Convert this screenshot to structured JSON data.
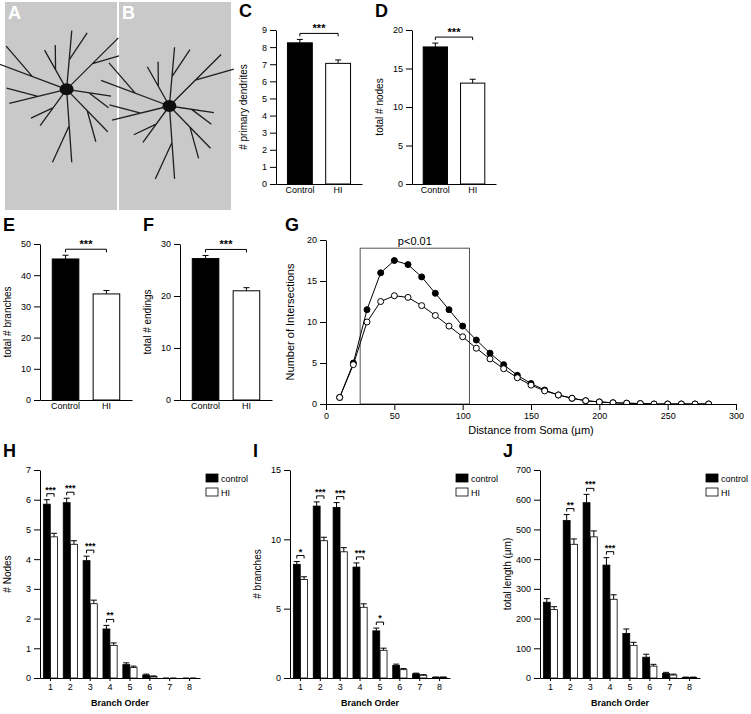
{
  "chart_data": [
    {
      "type": "image",
      "panel_label": "A"
    },
    {
      "type": "image",
      "panel_label": "B"
    },
    {
      "type": "bar",
      "panel_label": "C",
      "categories": [
        "Control",
        "HI"
      ],
      "values": [
        8.25,
        7.05
      ],
      "errors": [
        0.2,
        0.2
      ],
      "colors": [
        "#000000",
        "#ffffff"
      ],
      "ylabel": "# primary dendrites",
      "ylim": [
        0,
        9
      ],
      "yticks": [
        0,
        1,
        2,
        3,
        4,
        5,
        6,
        7,
        8,
        9
      ],
      "significance": "***"
    },
    {
      "type": "bar",
      "panel_label": "D",
      "categories": [
        "Control",
        "HI"
      ],
      "values": [
        17.8,
        13.1
      ],
      "errors": [
        0.5,
        0.5
      ],
      "colors": [
        "#000000",
        "#ffffff"
      ],
      "ylabel": "total # nodes",
      "ylim": [
        0,
        20
      ],
      "yticks": [
        0,
        5,
        10,
        15,
        20
      ],
      "significance": "***"
    },
    {
      "type": "bar",
      "panel_label": "E",
      "categories": [
        "Control",
        "HI"
      ],
      "values": [
        45.2,
        34.0
      ],
      "errors": [
        1.2,
        1.1
      ],
      "colors": [
        "#000000",
        "#ffffff"
      ],
      "ylabel": "total # branches",
      "ylim": [
        0,
        50
      ],
      "yticks": [
        0,
        10,
        20,
        30,
        40,
        50
      ],
      "significance": "***"
    },
    {
      "type": "bar",
      "panel_label": "F",
      "categories": [
        "Control",
        "HI"
      ],
      "values": [
        27.2,
        21.0
      ],
      "errors": [
        0.6,
        0.6
      ],
      "colors": [
        "#000000",
        "#ffffff"
      ],
      "ylabel": "total # endings",
      "ylim": [
        0,
        30
      ],
      "yticks": [
        0,
        10,
        20,
        30
      ],
      "significance": "***"
    },
    {
      "type": "line",
      "panel_label": "G",
      "xlabel": "Distance from Soma (µm)",
      "ylabel": "Number of Intersections",
      "x": [
        10,
        20,
        30,
        40,
        50,
        60,
        70,
        80,
        90,
        100,
        110,
        120,
        130,
        140,
        150,
        160,
        170,
        180,
        190,
        200,
        210,
        220,
        230,
        240,
        250,
        260,
        270,
        280
      ],
      "series": [
        {
          "color": "#000000",
          "marker": "circle",
          "values": [
            0.8,
            5,
            11.5,
            16,
            17.5,
            17,
            15.5,
            13.5,
            11.5,
            9.5,
            7.8,
            6.2,
            4.8,
            3.5,
            2.5,
            1.7,
            1.1,
            0.7,
            0.4,
            0.25,
            0.15,
            0.1,
            0.05,
            0,
            0,
            0,
            0,
            0
          ]
        },
        {
          "color": "#000000",
          "marker": "open-circle",
          "values": [
            0.8,
            4.8,
            10,
            12.5,
            13.2,
            13,
            12,
            10.8,
            9.5,
            8.2,
            6.8,
            5.5,
            4.3,
            3.2,
            2.3,
            1.6,
            1.1,
            0.7,
            0.4,
            0.25,
            0.15,
            0.1,
            0.05,
            0,
            0,
            0,
            0,
            0
          ]
        }
      ],
      "xlim": [
        0,
        300
      ],
      "xticks": [
        0,
        50,
        100,
        150,
        200,
        250,
        300
      ],
      "ylim": [
        0,
        20
      ],
      "yticks": [
        0,
        5,
        10,
        15,
        20
      ],
      "annotation": {
        "text": "p<0.01",
        "x_range": [
          25,
          105
        ],
        "y_range": [
          0,
          19
        ]
      }
    },
    {
      "type": "bar",
      "panel_label": "H",
      "categories": [
        "1",
        "2",
        "3",
        "4",
        "5",
        "6",
        "7",
        "8"
      ],
      "xlabel": "Branch Order",
      "ylabel": "# Nodes",
      "series": [
        {
          "name": "control",
          "color": "#000000",
          "values": [
            5.85,
            5.9,
            3.95,
            1.65,
            0.45,
            0.1,
            0,
            0
          ],
          "errors": [
            0.15,
            0.15,
            0.15,
            0.12,
            0.06,
            0.03,
            0,
            0
          ]
        },
        {
          "name": "HI",
          "color": "#ffffff",
          "values": [
            4.75,
            4.5,
            2.5,
            1.1,
            0.35,
            0.05,
            0,
            0
          ],
          "errors": [
            0.12,
            0.12,
            0.12,
            0.08,
            0.05,
            0.02,
            0,
            0
          ]
        }
      ],
      "ylim": [
        0,
        7
      ],
      "yticks": [
        0,
        1,
        2,
        3,
        4,
        5,
        6,
        7
      ],
      "legend": "right",
      "significance": [
        "***",
        "***",
        "***",
        "**",
        null,
        null,
        null,
        null
      ]
    },
    {
      "type": "bar",
      "panel_label": "I",
      "categories": [
        "1",
        "2",
        "3",
        "4",
        "5",
        "6",
        "7",
        "8"
      ],
      "xlabel": "Branch Order",
      "ylabel": "# branches",
      "series": [
        {
          "name": "control",
          "color": "#000000",
          "values": [
            8.2,
            12.4,
            12.3,
            8.0,
            3.4,
            0.9,
            0.3,
            0.05
          ],
          "errors": [
            0.2,
            0.3,
            0.35,
            0.3,
            0.2,
            0.1,
            0.05,
            0.02
          ]
        },
        {
          "name": "HI",
          "color": "#ffffff",
          "values": [
            7.1,
            9.9,
            9.1,
            5.1,
            2.0,
            0.6,
            0.2,
            0.05
          ],
          "errors": [
            0.2,
            0.25,
            0.3,
            0.25,
            0.15,
            0.08,
            0.04,
            0.02
          ]
        }
      ],
      "ylim": [
        0,
        15
      ],
      "yticks": [
        0,
        5,
        10,
        15
      ],
      "legend": "right",
      "significance": [
        "*",
        "***",
        "***",
        "***",
        "*",
        null,
        null,
        null
      ]
    },
    {
      "type": "bar",
      "panel_label": "J",
      "categories": [
        "1",
        "2",
        "3",
        "4",
        "5",
        "6",
        "7",
        "8"
      ],
      "xlabel": "Branch Order",
      "ylabel": "total length (µm)",
      "series": [
        {
          "name": "control",
          "color": "#000000",
          "values": [
            255,
            530,
            590,
            380,
            150,
            70,
            15,
            2
          ],
          "errors": [
            12,
            20,
            28,
            25,
            15,
            10,
            4,
            1
          ]
        },
        {
          "name": "HI",
          "color": "#ffffff",
          "values": [
            230,
            450,
            475,
            265,
            110,
            40,
            10,
            2
          ],
          "errors": [
            10,
            18,
            20,
            15,
            10,
            6,
            3,
            1
          ]
        }
      ],
      "ylim": [
        0,
        700
      ],
      "yticks": [
        0,
        100,
        200,
        300,
        400,
        500,
        600,
        700
      ],
      "legend": "right",
      "significance": [
        null,
        "**",
        "***",
        "***",
        null,
        null,
        null,
        null
      ]
    }
  ]
}
